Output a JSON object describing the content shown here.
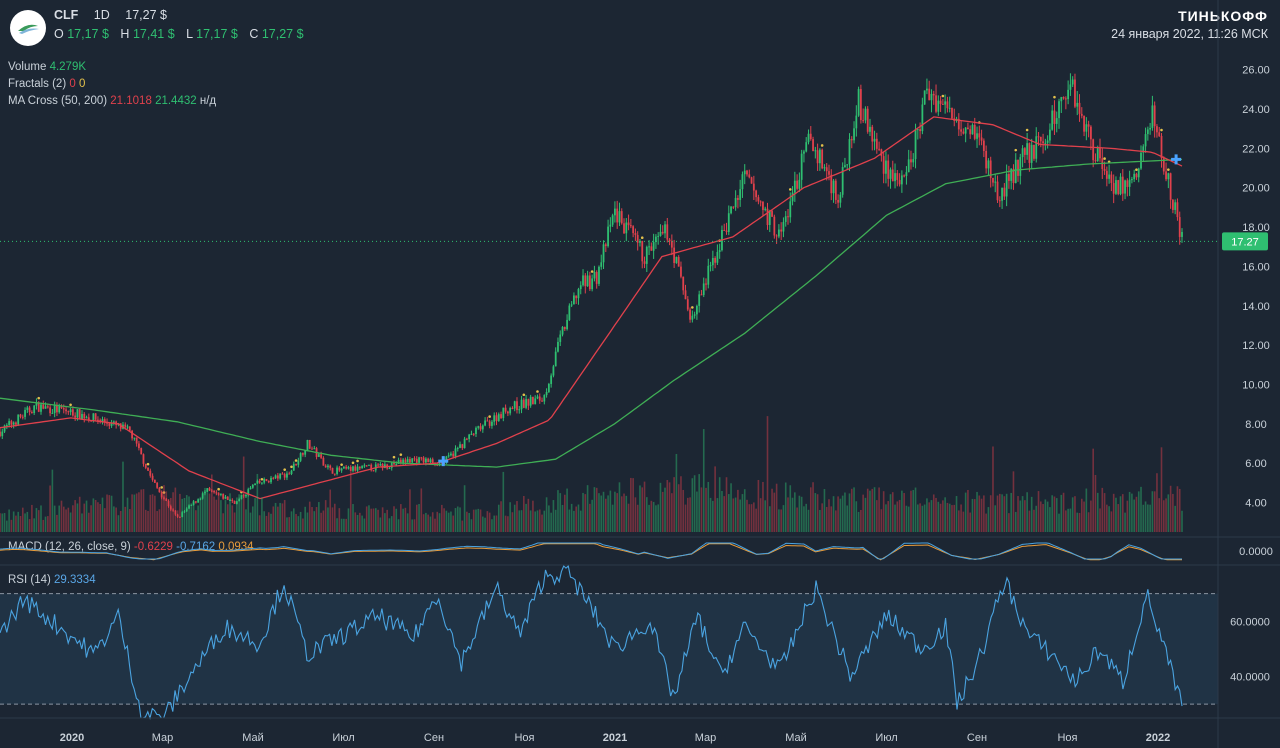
{
  "header": {
    "ticker": "CLF",
    "interval": "1D",
    "price": "17,27 $",
    "ohlc": [
      {
        "k": "O",
        "v": "17,17 $"
      },
      {
        "k": "H",
        "v": "17,41 $"
      },
      {
        "k": "L",
        "v": "17,17 $"
      },
      {
        "k": "C",
        "v": "17,27 $"
      }
    ],
    "brand": "ТИНЬКОФФ",
    "datetime": "24 января 2022, 11:26 МСК"
  },
  "indicators": {
    "volume": {
      "label": "Volume",
      "value": "4.279K"
    },
    "fractals": {
      "label": "Fractals (2)",
      "v1": "0",
      "v2": "0"
    },
    "ma_cross": {
      "label": "MA Cross (50, 200)",
      "v1": "21.1018",
      "v2": "21.4432",
      "v3": "н/д"
    },
    "macd": {
      "label": "MACD (12, 26, close, 9)",
      "v1": "-0.6229",
      "v2": "-0.7162",
      "v3": "0.0934"
    },
    "rsi": {
      "label": "RSI (14)",
      "value": "29.3334"
    }
  },
  "colors": {
    "background": "#1c2633",
    "up": "#2fbf71",
    "down": "#e0414c",
    "ma_fast": "#e0414c",
    "ma_slow": "#3fae55",
    "rsi": "#4aa3e0",
    "macd": "#4aa3e0",
    "signal": "#e89c3b"
  },
  "chart_data": [
    {
      "type": "candlestick",
      "symbol": "CLF",
      "last_price_label": "17.27",
      "ylim": [
        2.5,
        27
      ],
      "y_ticks": [
        "26.00",
        "24.00",
        "22.00",
        "20.00",
        "18.00",
        "16.00",
        "14.00",
        "12.00",
        "10.00",
        "8.00",
        "6.00",
        "4.00"
      ],
      "x_ticks": [
        "2020",
        "Мар",
        "Май",
        "Июл",
        "Сен",
        "Ноя",
        "2021",
        "Мар",
        "Май",
        "Июл",
        "Сен",
        "Ноя",
        "2022"
      ],
      "close_path": [
        {
          "t": 0,
          "y": 7.6
        },
        {
          "t": 0.03,
          "y": 8.9
        },
        {
          "t": 0.06,
          "y": 8.6
        },
        {
          "t": 0.09,
          "y": 8.1
        },
        {
          "t": 0.11,
          "y": 7.6
        },
        {
          "t": 0.13,
          "y": 5.0
        },
        {
          "t": 0.15,
          "y": 3.2
        },
        {
          "t": 0.175,
          "y": 4.6
        },
        {
          "t": 0.2,
          "y": 4.0
        },
        {
          "t": 0.215,
          "y": 4.9
        },
        {
          "t": 0.245,
          "y": 5.5
        },
        {
          "t": 0.26,
          "y": 7.0
        },
        {
          "t": 0.28,
          "y": 5.6
        },
        {
          "t": 0.32,
          "y": 5.8
        },
        {
          "t": 0.35,
          "y": 6.2
        },
        {
          "t": 0.375,
          "y": 6.0
        },
        {
          "t": 0.4,
          "y": 7.5
        },
        {
          "t": 0.43,
          "y": 8.8
        },
        {
          "t": 0.46,
          "y": 9.3
        },
        {
          "t": 0.475,
          "y": 12.5
        },
        {
          "t": 0.49,
          "y": 15.0
        },
        {
          "t": 0.505,
          "y": 15.5
        },
        {
          "t": 0.52,
          "y": 18.8
        },
        {
          "t": 0.545,
          "y": 16.5
        },
        {
          "t": 0.565,
          "y": 17.8
        },
        {
          "t": 0.585,
          "y": 13.2
        },
        {
          "t": 0.615,
          "y": 18.2
        },
        {
          "t": 0.63,
          "y": 20.5
        },
        {
          "t": 0.66,
          "y": 17.5
        },
        {
          "t": 0.685,
          "y": 22.5
        },
        {
          "t": 0.71,
          "y": 19.5
        },
        {
          "t": 0.725,
          "y": 24.5
        },
        {
          "t": 0.745,
          "y": 21.5
        },
        {
          "t": 0.765,
          "y": 20.0
        },
        {
          "t": 0.785,
          "y": 25.0
        },
        {
          "t": 0.8,
          "y": 24.0
        },
        {
          "t": 0.825,
          "y": 23.0
        },
        {
          "t": 0.845,
          "y": 19.5
        },
        {
          "t": 0.865,
          "y": 21.5
        },
        {
          "t": 0.885,
          "y": 22.5
        },
        {
          "t": 0.905,
          "y": 25.5
        },
        {
          "t": 0.925,
          "y": 22.0
        },
        {
          "t": 0.945,
          "y": 20.0
        },
        {
          "t": 0.96,
          "y": 20.3
        },
        {
          "t": 0.975,
          "y": 23.8
        },
        {
          "t": 0.99,
          "y": 20.0
        },
        {
          "t": 1.0,
          "y": 17.3
        }
      ],
      "ma_fast_path": [
        {
          "t": 0,
          "y": 7.8
        },
        {
          "t": 0.06,
          "y": 8.3
        },
        {
          "t": 0.1,
          "y": 8.0
        },
        {
          "t": 0.16,
          "y": 5.6
        },
        {
          "t": 0.22,
          "y": 4.2
        },
        {
          "t": 0.27,
          "y": 5.0
        },
        {
          "t": 0.32,
          "y": 5.8
        },
        {
          "t": 0.37,
          "y": 6.0
        },
        {
          "t": 0.42,
          "y": 7.0
        },
        {
          "t": 0.465,
          "y": 8.2
        },
        {
          "t": 0.52,
          "y": 13.0
        },
        {
          "t": 0.56,
          "y": 16.5
        },
        {
          "t": 0.62,
          "y": 17.5
        },
        {
          "t": 0.68,
          "y": 20.0
        },
        {
          "t": 0.74,
          "y": 21.5
        },
        {
          "t": 0.79,
          "y": 23.6
        },
        {
          "t": 0.84,
          "y": 23.2
        },
        {
          "t": 0.88,
          "y": 22.2
        },
        {
          "t": 0.94,
          "y": 22.0
        },
        {
          "t": 0.975,
          "y": 21.8
        },
        {
          "t": 1.0,
          "y": 21.1
        }
      ],
      "ma_slow_path": [
        {
          "t": 0,
          "y": 9.3
        },
        {
          "t": 0.08,
          "y": 8.7
        },
        {
          "t": 0.15,
          "y": 8.1
        },
        {
          "t": 0.22,
          "y": 7.1
        },
        {
          "t": 0.28,
          "y": 6.4
        },
        {
          "t": 0.34,
          "y": 6.0
        },
        {
          "t": 0.42,
          "y": 5.8
        },
        {
          "t": 0.47,
          "y": 6.2
        },
        {
          "t": 0.52,
          "y": 8.0
        },
        {
          "t": 0.57,
          "y": 10.2
        },
        {
          "t": 0.63,
          "y": 12.6
        },
        {
          "t": 0.69,
          "y": 15.5
        },
        {
          "t": 0.75,
          "y": 18.6
        },
        {
          "t": 0.8,
          "y": 20.2
        },
        {
          "t": 0.86,
          "y": 20.9
        },
        {
          "t": 0.92,
          "y": 21.2
        },
        {
          "t": 1.0,
          "y": 21.44
        }
      ],
      "cross_markers": [
        {
          "t": 0.375,
          "y": 6.1
        },
        {
          "t": 0.995,
          "y": 21.44
        }
      ]
    },
    {
      "type": "bar",
      "name": "Volume",
      "volume_path": [
        {
          "t": 0,
          "y": 0.25
        },
        {
          "t": 0.15,
          "y": 0.55
        },
        {
          "t": 0.25,
          "y": 0.35
        },
        {
          "t": 0.4,
          "y": 0.3
        },
        {
          "t": 0.5,
          "y": 0.55
        },
        {
          "t": 0.55,
          "y": 0.7
        },
        {
          "t": 0.7,
          "y": 0.55
        },
        {
          "t": 0.85,
          "y": 0.45
        },
        {
          "t": 1.0,
          "y": 0.55
        }
      ]
    },
    {
      "type": "line",
      "name": "MACD (12, 26, close, 9)",
      "y_ticks": [
        "0.0000"
      ]
    },
    {
      "type": "line",
      "name": "RSI (14)",
      "ylim": [
        25,
        80
      ],
      "y_ticks": [
        "60.0000",
        "40.0000"
      ],
      "band": [
        30,
        70
      ],
      "rsi_path": [
        {
          "t": 0,
          "y": 55
        },
        {
          "t": 0.02,
          "y": 68
        },
        {
          "t": 0.05,
          "y": 58
        },
        {
          "t": 0.08,
          "y": 48
        },
        {
          "t": 0.1,
          "y": 62
        },
        {
          "t": 0.12,
          "y": 26
        },
        {
          "t": 0.14,
          "y": 26
        },
        {
          "t": 0.16,
          "y": 40
        },
        {
          "t": 0.19,
          "y": 58
        },
        {
          "t": 0.22,
          "y": 52
        },
        {
          "t": 0.24,
          "y": 74
        },
        {
          "t": 0.26,
          "y": 48
        },
        {
          "t": 0.29,
          "y": 55
        },
        {
          "t": 0.32,
          "y": 62
        },
        {
          "t": 0.35,
          "y": 54
        },
        {
          "t": 0.37,
          "y": 70
        },
        {
          "t": 0.39,
          "y": 45
        },
        {
          "t": 0.42,
          "y": 72
        },
        {
          "t": 0.44,
          "y": 55
        },
        {
          "t": 0.46,
          "y": 76
        },
        {
          "t": 0.48,
          "y": 78
        },
        {
          "t": 0.5,
          "y": 65
        },
        {
          "t": 0.52,
          "y": 50
        },
        {
          "t": 0.55,
          "y": 60
        },
        {
          "t": 0.57,
          "y": 32
        },
        {
          "t": 0.59,
          "y": 62
        },
        {
          "t": 0.61,
          "y": 40
        },
        {
          "t": 0.63,
          "y": 58
        },
        {
          "t": 0.66,
          "y": 42
        },
        {
          "t": 0.69,
          "y": 72
        },
        {
          "t": 0.72,
          "y": 40
        },
        {
          "t": 0.75,
          "y": 62
        },
        {
          "t": 0.78,
          "y": 50
        },
        {
          "t": 0.8,
          "y": 58
        },
        {
          "t": 0.81,
          "y": 30
        },
        {
          "t": 0.83,
          "y": 48
        },
        {
          "t": 0.85,
          "y": 75
        },
        {
          "t": 0.87,
          "y": 55
        },
        {
          "t": 0.89,
          "y": 48
        },
        {
          "t": 0.91,
          "y": 38
        },
        {
          "t": 0.93,
          "y": 50
        },
        {
          "t": 0.95,
          "y": 38
        },
        {
          "t": 0.97,
          "y": 70
        },
        {
          "t": 0.985,
          "y": 50
        },
        {
          "t": 1.0,
          "y": 29.3
        }
      ]
    }
  ]
}
